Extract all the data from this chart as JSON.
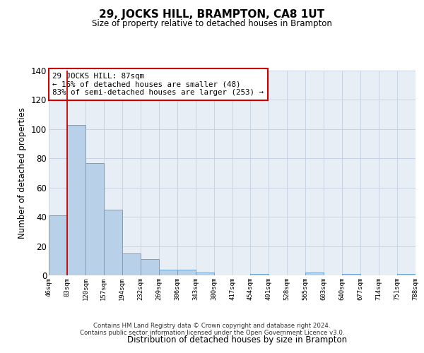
{
  "title": "29, JOCKS HILL, BRAMPTON, CA8 1UT",
  "subtitle": "Size of property relative to detached houses in Brampton",
  "xlabel": "Distribution of detached houses by size in Brampton",
  "ylabel": "Number of detached properties",
  "bar_values": [
    41,
    103,
    77,
    45,
    15,
    11,
    4,
    4,
    2,
    0,
    0,
    1,
    0,
    0,
    2,
    0,
    1,
    0,
    0,
    1
  ],
  "bin_labels": [
    "46sqm",
    "83sqm",
    "120sqm",
    "157sqm",
    "194sqm",
    "232sqm",
    "269sqm",
    "306sqm",
    "343sqm",
    "380sqm",
    "417sqm",
    "454sqm",
    "491sqm",
    "528sqm",
    "565sqm",
    "603sqm",
    "640sqm",
    "677sqm",
    "714sqm",
    "751sqm",
    "788sqm"
  ],
  "bar_color": "#b8d0e8",
  "bar_edge_color": "#6ba3cc",
  "grid_color": "#c8d4e4",
  "background_color": "#e8eef6",
  "vline_color": "#cc0000",
  "annotation_text": "29 JOCKS HILL: 87sqm\n← 16% of detached houses are smaller (48)\n83% of semi-detached houses are larger (253) →",
  "annotation_box_color": "#ffffff",
  "annotation_box_edge": "#cc0000",
  "ylim": [
    0,
    140
  ],
  "yticks": [
    0,
    20,
    40,
    60,
    80,
    100,
    120,
    140
  ],
  "footer_line1": "Contains HM Land Registry data © Crown copyright and database right 2024.",
  "footer_line2": "Contains public sector information licensed under the Open Government Licence v3.0."
}
